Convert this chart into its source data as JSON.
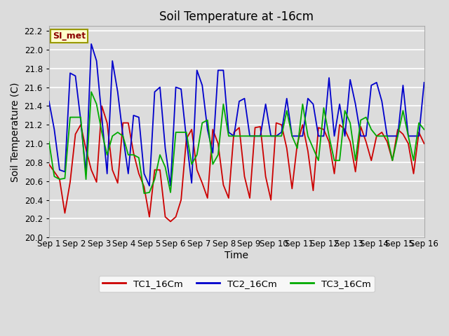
{
  "title": "Soil Temperature at -16cm",
  "xlabel": "Time",
  "ylabel": "Soil Temperature (C)",
  "ylim": [
    20.0,
    22.25
  ],
  "yticks": [
    20.0,
    20.2,
    20.4,
    20.6,
    20.8,
    21.0,
    21.2,
    21.4,
    21.6,
    21.8,
    22.0,
    22.2
  ],
  "bg_color": "#dcdcdc",
  "grid_color": "#ffffff",
  "legend_label": "SI_met",
  "series": {
    "TC1_16Cm": {
      "color": "#cc0000",
      "values": [
        20.78,
        20.7,
        20.62,
        20.26,
        20.59,
        21.1,
        21.2,
        20.94,
        20.72,
        20.59,
        21.4,
        21.22,
        20.72,
        20.58,
        21.22,
        21.22,
        20.9,
        20.68,
        20.54,
        20.22,
        20.72,
        20.72,
        20.22,
        20.17,
        20.22,
        20.4,
        21.05,
        21.15,
        20.72,
        20.58,
        20.42,
        21.15,
        21.0,
        20.56,
        20.42,
        21.12,
        21.17,
        20.65,
        20.42,
        21.17,
        21.18,
        20.65,
        20.4,
        21.22,
        21.2,
        20.95,
        20.52,
        21.0,
        21.2,
        20.92,
        20.5,
        21.17,
        21.15,
        21.02,
        20.68,
        21.2,
        21.15,
        21.02,
        20.7,
        21.18,
        21.02,
        20.82,
        21.08,
        21.12,
        21.02,
        20.82,
        21.15,
        21.1,
        21.0,
        20.68,
        21.12,
        21.0
      ]
    },
    "TC2_16Cm": {
      "color": "#0000cc",
      "values": [
        21.45,
        21.15,
        20.72,
        20.7,
        21.75,
        21.72,
        21.25,
        20.68,
        22.06,
        21.88,
        21.28,
        20.68,
        21.88,
        21.55,
        21.08,
        20.68,
        21.3,
        21.28,
        20.68,
        20.55,
        21.55,
        21.6,
        20.95,
        20.55,
        21.6,
        21.58,
        21.05,
        20.58,
        21.78,
        21.62,
        21.15,
        20.9,
        21.78,
        21.78,
        21.12,
        21.08,
        21.45,
        21.48,
        21.08,
        21.08,
        21.08,
        21.42,
        21.08,
        21.08,
        21.12,
        21.48,
        21.08,
        21.08,
        21.08,
        21.48,
        21.42,
        21.08,
        21.08,
        21.7,
        21.08,
        21.42,
        21.08,
        21.68,
        21.42,
        21.08,
        21.08,
        21.62,
        21.65,
        21.45,
        21.08,
        21.08,
        21.08,
        21.62,
        21.08,
        21.08,
        21.08,
        21.65
      ]
    },
    "TC3_16Cm": {
      "color": "#00aa00",
      "values": [
        21.02,
        20.65,
        20.62,
        20.63,
        21.28,
        21.28,
        21.28,
        20.62,
        21.55,
        21.42,
        21.12,
        20.88,
        21.08,
        21.12,
        21.08,
        20.88,
        20.88,
        20.85,
        20.47,
        20.48,
        20.62,
        20.88,
        20.75,
        20.48,
        21.12,
        21.12,
        21.12,
        20.78,
        20.88,
        21.22,
        21.25,
        20.78,
        20.88,
        21.42,
        21.08,
        21.08,
        21.08,
        21.08,
        21.08,
        21.08,
        21.08,
        21.08,
        21.08,
        21.08,
        21.08,
        21.35,
        21.08,
        20.95,
        21.42,
        21.08,
        20.95,
        20.82,
        21.38,
        21.08,
        20.82,
        20.82,
        21.35,
        21.22,
        20.82,
        21.25,
        21.28,
        21.15,
        21.08,
        21.08,
        21.08,
        20.82,
        21.08,
        21.35,
        21.08,
        20.82,
        21.22,
        21.15
      ]
    }
  },
  "x_tick_labels": [
    "Sep 1",
    "Sep 2",
    "Sep 3",
    "Sep 4",
    "Sep 5",
    "Sep 6",
    "Sep 7",
    "Sep 8",
    "Sep 9",
    "Sep 10",
    "Sep 11",
    "Sep 12",
    "Sep 13",
    "Sep 14",
    "Sep 15",
    "Sep 16"
  ],
  "title_fontsize": 12,
  "axis_label_fontsize": 10,
  "tick_fontsize": 8.5,
  "linewidth": 1.3
}
